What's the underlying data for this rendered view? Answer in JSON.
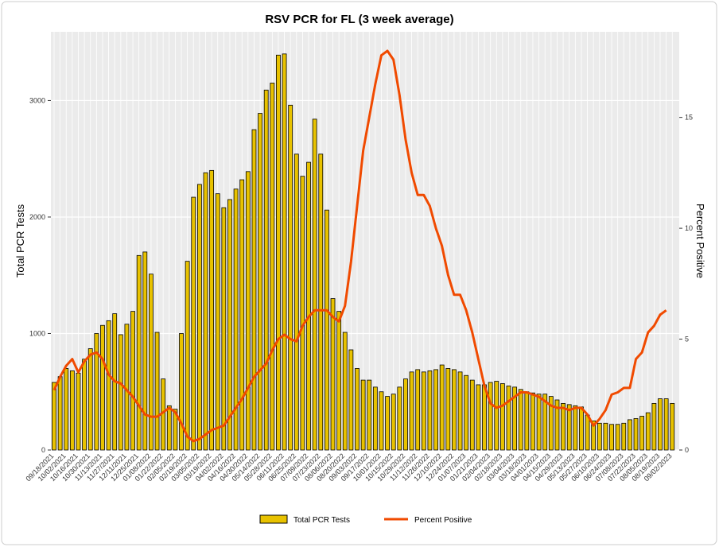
{
  "chart_data": {
    "type": "bar_line",
    "title": "RSV PCR for FL (3 week average)",
    "ylabel": "Total PCR Tests",
    "y2label": "Percent Positive",
    "categories": [
      "09/18/2021",
      null,
      "10/02/2021",
      null,
      "10/16/2021",
      null,
      "10/30/2021",
      null,
      "11/13/2021",
      null,
      "11/27/2021",
      null,
      "12/11/2021",
      null,
      "12/25/2021",
      null,
      "01/08/2022",
      null,
      "01/22/2022",
      null,
      "02/05/2022",
      null,
      "02/19/2022",
      null,
      "03/05/2022",
      null,
      "03/19/2022",
      null,
      "04/02/2022",
      null,
      "04/16/2022",
      null,
      "04/30/2022",
      null,
      "05/14/2022",
      null,
      "05/28/2022",
      null,
      "06/11/2022",
      null,
      "06/25/2022",
      null,
      "07/09/2022",
      null,
      "07/23/2022",
      null,
      "08/06/2022",
      null,
      "08/20/2022",
      null,
      "09/03/2022",
      null,
      "09/17/2022",
      null,
      "10/01/2022",
      null,
      "10/15/2022",
      null,
      "10/29/2022",
      null,
      "11/12/2022",
      null,
      "11/26/2022",
      null,
      "12/10/2022",
      null,
      "12/24/2022",
      null,
      "01/07/2023",
      null,
      "01/21/2023",
      null,
      "02/04/2023",
      null,
      "02/18/2023",
      null,
      "03/04/2023",
      null,
      "03/18/2023",
      null,
      "04/01/2023",
      null,
      "04/15/2023",
      null,
      "04/29/2023",
      null,
      "05/13/2023",
      null,
      "05/27/2023",
      null,
      "06/10/2023",
      null,
      "06/24/2023",
      null,
      "07/08/2023",
      null,
      "07/22/2023",
      null,
      "08/05/2023",
      null,
      "08/19/2023",
      null,
      "09/02/2023"
    ],
    "series": [
      {
        "name": "Total PCR Tests",
        "color": "#e8c200",
        "values": [
          580,
          630,
          700,
          680,
          660,
          780,
          870,
          1000,
          1070,
          1110,
          1170,
          990,
          1080,
          1190,
          1670,
          1700,
          1510,
          1010,
          610,
          380,
          350,
          1000,
          1620,
          2170,
          2280,
          2380,
          2400,
          2200,
          2080,
          2150,
          2240,
          2320,
          2390,
          2750,
          2890,
          3090,
          3150,
          3390,
          3400,
          2960,
          2540,
          2350,
          2470,
          2840,
          2540,
          2060,
          1300,
          1190,
          1010,
          860,
          700,
          600,
          600,
          540,
          500,
          460,
          480,
          540,
          610,
          670,
          690,
          670,
          680,
          690,
          730,
          700,
          690,
          670,
          640,
          600,
          560,
          560,
          580,
          590,
          570,
          550,
          540,
          520,
          500,
          490,
          480,
          480,
          460,
          430,
          400,
          390,
          380,
          370,
          300,
          250,
          230,
          230,
          220,
          220,
          230,
          260,
          270,
          290,
          320,
          400,
          440,
          440,
          400
        ]
      },
      {
        "name": "Percent Positive",
        "color": "#f04a00",
        "axis": "y2",
        "values": [
          2.7,
          3.3,
          3.8,
          4.1,
          3.5,
          4.0,
          4.3,
          4.4,
          4.1,
          3.4,
          3.1,
          3.0,
          2.7,
          2.4,
          2.0,
          1.6,
          1.5,
          1.5,
          1.7,
          1.9,
          1.7,
          1.2,
          0.6,
          0.4,
          0.5,
          0.7,
          0.9,
          1.0,
          1.1,
          1.5,
          1.9,
          2.3,
          2.8,
          3.3,
          3.6,
          3.9,
          4.5,
          5.0,
          5.2,
          5.0,
          4.9,
          5.6,
          6.0,
          6.3,
          6.3,
          6.3,
          6.0,
          5.8,
          6.5,
          8.5,
          11.0,
          13.5,
          15.0,
          16.5,
          17.8,
          18.0,
          17.6,
          16.0,
          14.0,
          12.5,
          11.5,
          11.5,
          11.0,
          10.0,
          9.2,
          7.9,
          7.0,
          7.0,
          6.3,
          5.3,
          4.1,
          2.9,
          2.1,
          1.9,
          2.0,
          2.2,
          2.4,
          2.6,
          2.6,
          2.5,
          2.4,
          2.2,
          2.0,
          1.9,
          1.9,
          1.8,
          1.9,
          1.9,
          1.6,
          1.1,
          1.4,
          1.8,
          2.5,
          2.6,
          2.8,
          2.8,
          4.1,
          4.4,
          5.3,
          5.6,
          6.1,
          6.3,
          null
        ]
      }
    ],
    "ylim": [
      0,
      3590
    ],
    "yticks": [
      0,
      1000,
      2000,
      3000
    ],
    "y2lim": [
      0,
      18.86
    ],
    "y2ticks": [
      0,
      5,
      10,
      15
    ],
    "grid": true
  }
}
